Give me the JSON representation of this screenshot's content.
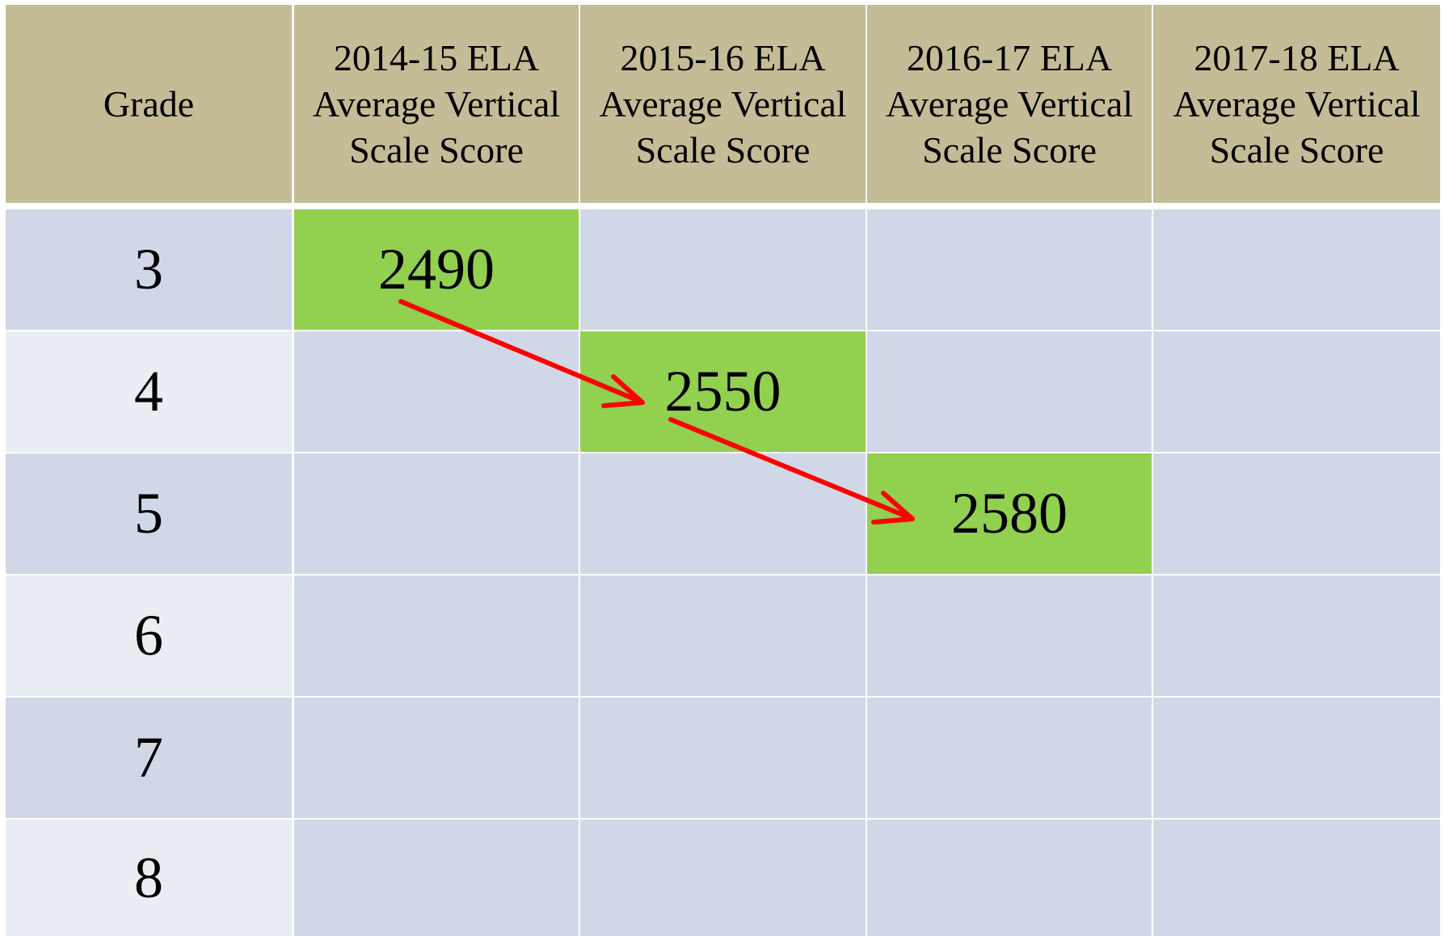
{
  "table": {
    "header": [
      "Grade",
      "2014-15 ELA Average Vertical Scale Score",
      "2015-16 ELA Average Vertical Scale Score",
      "2016-17 ELA Average Vertical Scale Score",
      "2017-18 ELA Average Vertical Scale Score"
    ],
    "rows": [
      [
        3,
        2490,
        null,
        null,
        null
      ],
      [
        4,
        null,
        2550,
        null,
        null
      ],
      [
        5,
        null,
        null,
        2580,
        null
      ],
      [
        6,
        null,
        null,
        null,
        null
      ],
      [
        7,
        null,
        null,
        null,
        null
      ],
      [
        8,
        null,
        null,
        null,
        null
      ]
    ]
  }
}
